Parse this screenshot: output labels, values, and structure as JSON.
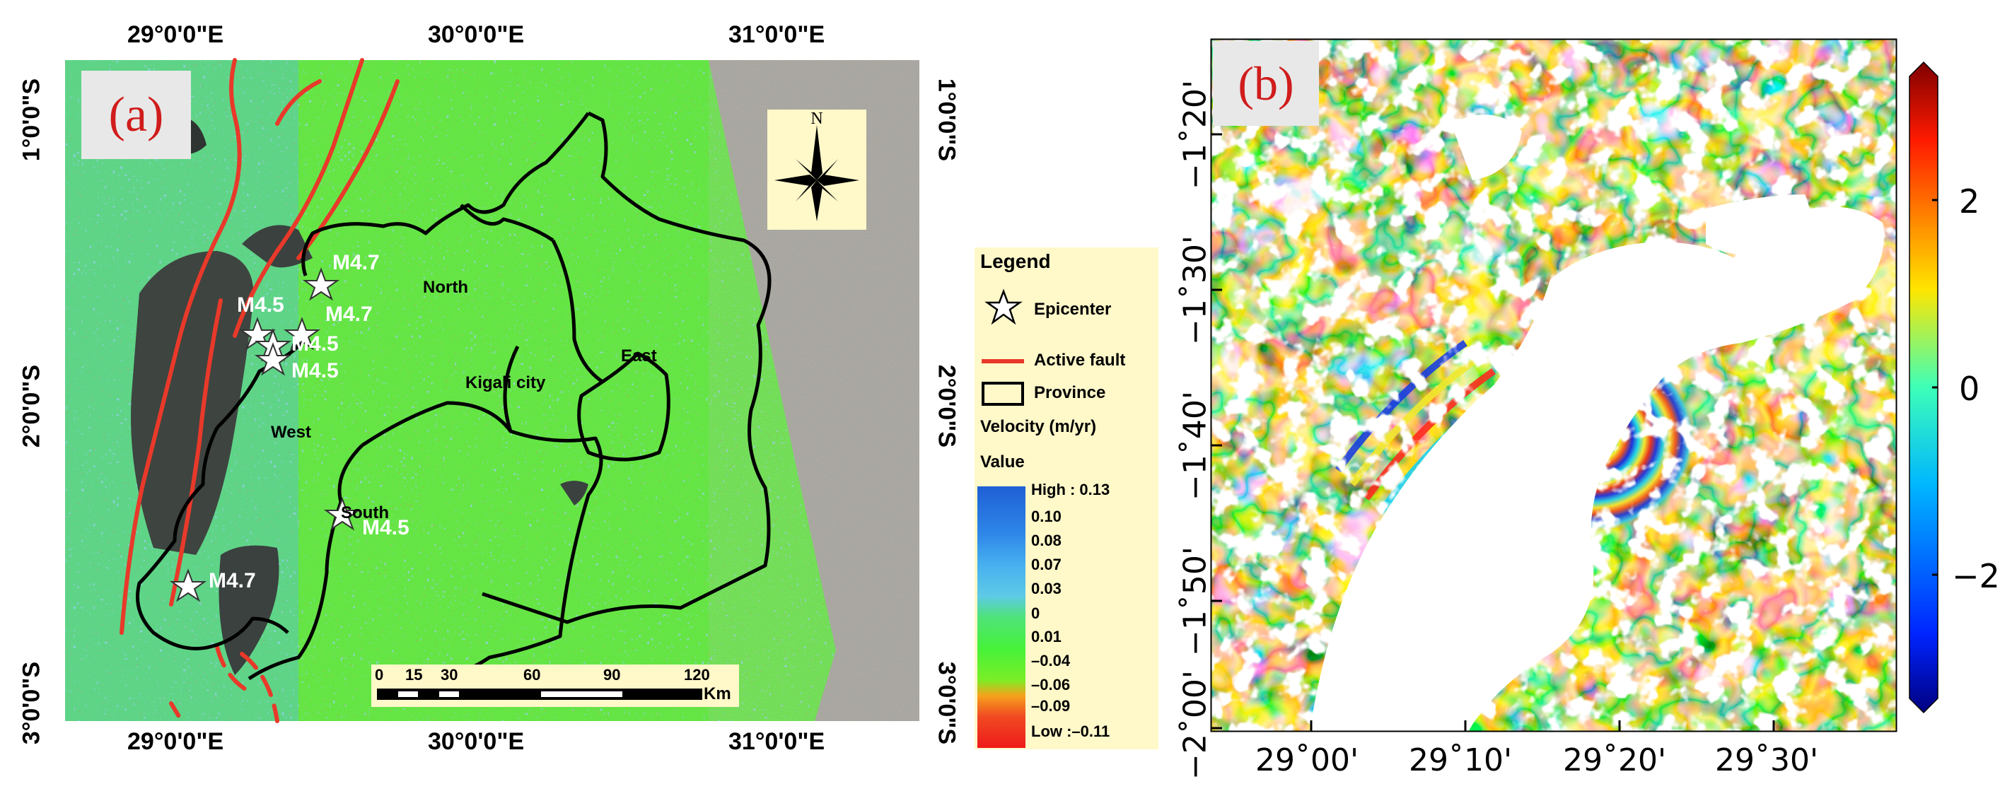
{
  "panel_a": {
    "label": "(a)",
    "top_ticks": [
      "29°0'0\"E",
      "30°0'0\"E",
      "31°0'0\"E"
    ],
    "bottom_ticks": [
      "29°0'0\"E",
      "30°0'0\"E",
      "31°0'0\"E"
    ],
    "left_ticks": [
      "1°0'0\"S",
      "2°0'0\"S",
      "3°0'0\"S"
    ],
    "right_ticks": [
      "1°0'0\"S",
      "2°0'0\"S",
      "3°0'0\"S"
    ],
    "north_arrow_label": "N",
    "earthquakes": [
      "M4.7",
      "M4.5",
      "M4.7",
      "M4.5",
      "M4.5",
      "M4.5",
      "M4.7"
    ],
    "provinces": [
      "North",
      "East",
      "Kigali city",
      "West",
      "South"
    ],
    "scale_bar": {
      "ticks": [
        "0",
        "15",
        "30",
        "60",
        "90",
        "120"
      ],
      "unit": "Km"
    }
  },
  "legend": {
    "title": "Legend",
    "epicenter": "Epicenter",
    "active_fault": "Active fault",
    "province": "Province",
    "velocity": "Velocity (m/yr)",
    "value": "Value",
    "ramp": [
      "High : 0.13",
      "0.10",
      "0.08",
      "0.07",
      "0.03",
      "0",
      "0.01",
      "–0.04",
      "–0.06",
      "–0.09",
      "Low :–0.11"
    ],
    "colors": {
      "fault": "#e8392a",
      "ramp": [
        "#1f5fd6",
        "#2e86e8",
        "#47b0f0",
        "#5ecae6",
        "#4fe37a",
        "#46f23a",
        "#7aee26",
        "#f6a21c",
        "#f04a22",
        "#ef1a1a"
      ]
    }
  },
  "panel_b": {
    "label": "(b)",
    "x_ticks": [
      "29˚00'",
      "29˚10'",
      "29˚20'",
      "29˚30'"
    ],
    "y_ticks": [
      "−1˚20'",
      "−1˚30'",
      "−1˚40'",
      "−1˚50'",
      "−2˚00'"
    ],
    "colorbar_ticks": [
      "2",
      "0",
      "−2"
    ]
  }
}
